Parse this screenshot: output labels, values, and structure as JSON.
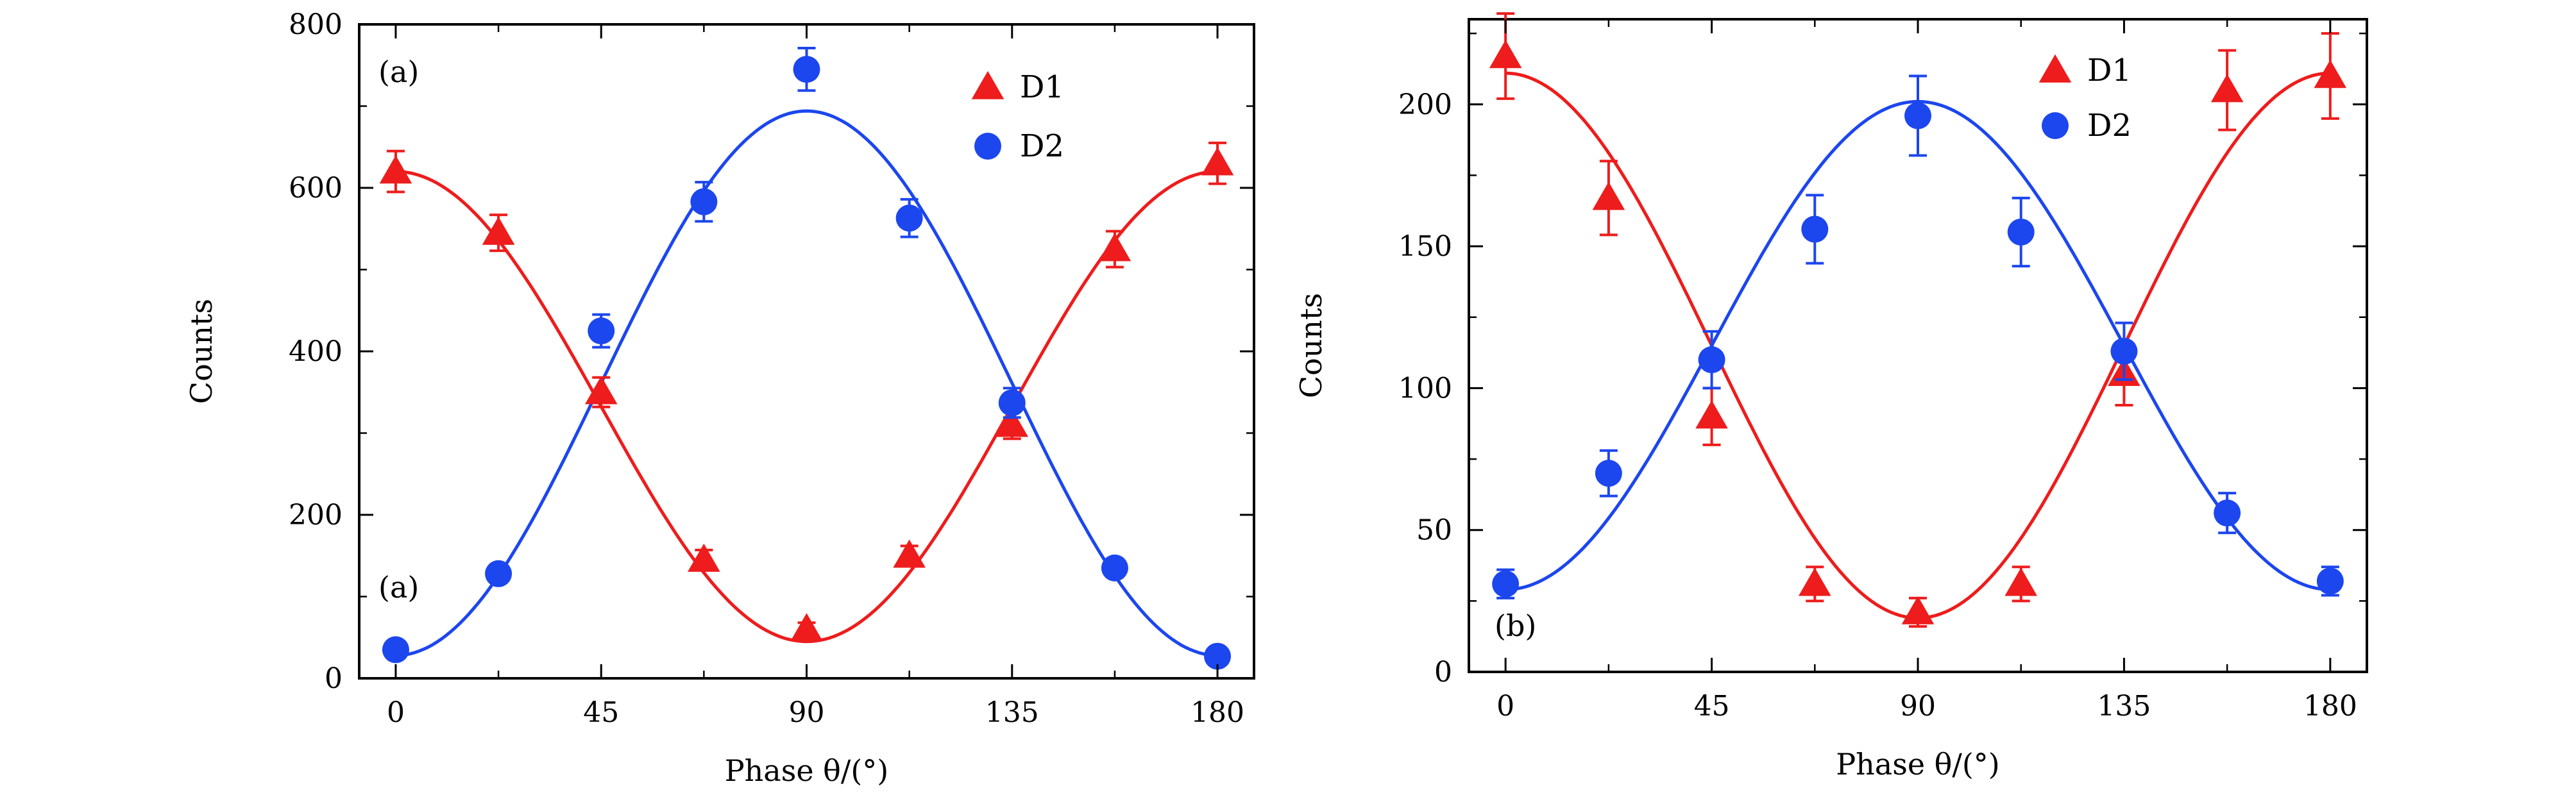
{
  "colors": {
    "d1": "#ee1c1c",
    "d2": "#1c46ee",
    "axis": "#000000"
  },
  "chart_data": [
    {
      "type": "scatter",
      "panel_labels": [
        "(a)",
        "(a)"
      ],
      "xlabel": "Phase θ/(°)",
      "ylabel": "Counts",
      "xlim": [
        -8,
        188
      ],
      "ylim": [
        0,
        800
      ],
      "xticks": [
        0,
        45,
        90,
        135,
        180
      ],
      "xticklabels": [
        "0",
        "45",
        "90",
        "135",
        "180"
      ],
      "yticks": [
        0,
        200,
        400,
        600,
        800
      ],
      "yticklabels": [
        "0",
        "200",
        "400",
        "600",
        "800"
      ],
      "legend": {
        "position": "top-right",
        "entries": [
          "D1",
          "D2"
        ]
      },
      "grid": false,
      "series": [
        {
          "name": "D1",
          "marker": "triangle",
          "color": "#ee1c1c",
          "x": [
            0,
            22.5,
            45,
            67.5,
            90,
            112.5,
            135,
            157.5,
            180
          ],
          "y": [
            620,
            545,
            350,
            145,
            60,
            150,
            310,
            525,
            630
          ],
          "err": [
            25,
            22,
            18,
            12,
            8,
            12,
            17,
            22,
            25
          ],
          "fit": {
            "offset": 332.5,
            "amplitude": 287.5,
            "phase_sign": 1
          }
        },
        {
          "name": "D2",
          "marker": "circle",
          "color": "#1c46ee",
          "x": [
            0,
            22.5,
            45,
            67.5,
            90,
            112.5,
            135,
            157.5,
            180
          ],
          "y": [
            35,
            128,
            425,
            583,
            745,
            563,
            337,
            135,
            27
          ],
          "err": [
            8,
            11,
            20,
            24,
            26,
            23,
            18,
            11,
            7
          ],
          "fit": {
            "offset": 361,
            "amplitude": 333,
            "phase_sign": -1
          }
        }
      ]
    },
    {
      "type": "scatter",
      "panel_labels": [
        "(b)"
      ],
      "xlabel": "Phase θ/(°)",
      "ylabel": "Counts",
      "xlim": [
        -8,
        188
      ],
      "ylim": [
        0,
        230
      ],
      "xticks": [
        0,
        45,
        90,
        135,
        180
      ],
      "xticklabels": [
        "0",
        "45",
        "90",
        "135",
        "180"
      ],
      "yticks": [
        0,
        50,
        100,
        150,
        200
      ],
      "yticklabels": [
        "0",
        "50",
        "100",
        "150",
        "200"
      ],
      "legend": {
        "position": "top-right",
        "entries": [
          "D1",
          "D2"
        ]
      },
      "grid": false,
      "series": [
        {
          "name": "D1",
          "marker": "triangle",
          "color": "#ee1c1c",
          "x": [
            0,
            22.5,
            45,
            67.5,
            90,
            112.5,
            135,
            157.5,
            180
          ],
          "y": [
            217,
            167,
            90,
            31,
            21,
            31,
            105,
            205,
            210
          ],
          "err": [
            15,
            13,
            10,
            6,
            5,
            6,
            11,
            14,
            15
          ],
          "fit": {
            "offset": 115,
            "amplitude": 96,
            "phase_sign": 1
          }
        },
        {
          "name": "D2",
          "marker": "circle",
          "color": "#1c46ee",
          "x": [
            0,
            22.5,
            45,
            67.5,
            90,
            112.5,
            135,
            157.5,
            180
          ],
          "y": [
            31,
            70,
            110,
            156,
            196,
            155,
            113,
            56,
            32
          ],
          "err": [
            5,
            8,
            10,
            12,
            14,
            12,
            10,
            7,
            5
          ],
          "fit": {
            "offset": 115,
            "amplitude": 86,
            "phase_sign": -1
          }
        }
      ]
    }
  ]
}
